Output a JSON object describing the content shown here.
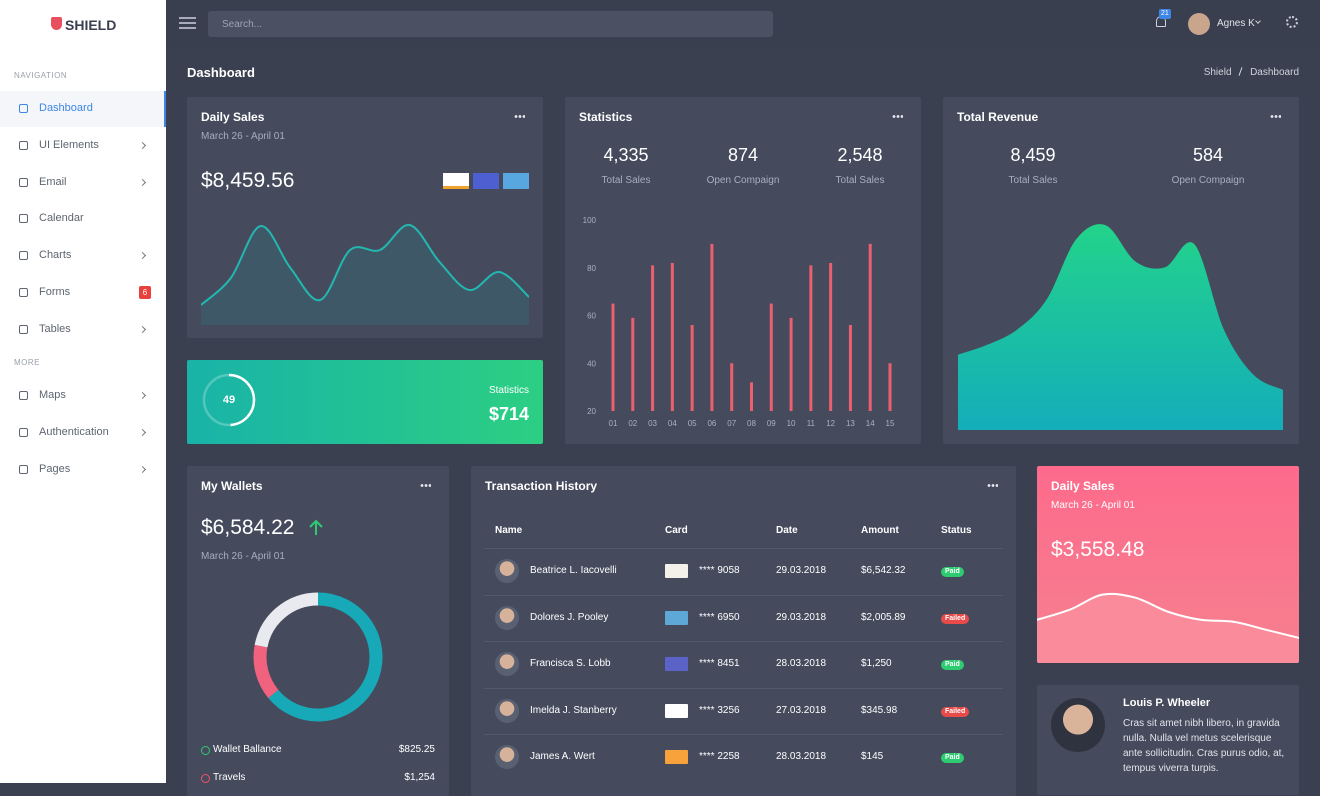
{
  "brand": "SHIELD",
  "topbar": {
    "search_placeholder": "Search...",
    "notifications": "21",
    "user": "Agnes K"
  },
  "sidebar": {
    "sections": [
      {
        "title": "NAVIGATION",
        "items": [
          {
            "label": "Dashboard",
            "active": true
          },
          {
            "label": "UI Elements",
            "submenu": true
          },
          {
            "label": "Email",
            "submenu": true
          },
          {
            "label": "Calendar"
          },
          {
            "label": "Charts",
            "submenu": true
          },
          {
            "label": "Forms",
            "badge": "6"
          },
          {
            "label": "Tables",
            "submenu": true
          }
        ]
      },
      {
        "title": "MORE",
        "items": [
          {
            "label": "Maps",
            "submenu": true
          },
          {
            "label": "Authentication",
            "submenu": true
          },
          {
            "label": "Pages",
            "submenu": true
          }
        ]
      }
    ]
  },
  "page": {
    "title": "Dashboard",
    "breadcrumb": [
      "Shield",
      "Dashboard"
    ]
  },
  "daily_sales": {
    "title": "Daily Sales",
    "subtitle": "March 26 - April 01",
    "amount": "$8,459.56"
  },
  "progress": {
    "value": 49,
    "label": "Statistics",
    "amount": "$714"
  },
  "statistics": {
    "title": "Statistics",
    "stats": [
      {
        "value": "4,335",
        "label": "Total Sales"
      },
      {
        "value": "874",
        "label": "Open Compaign"
      },
      {
        "value": "2,548",
        "label": "Total Sales"
      }
    ]
  },
  "total_revenue": {
    "title": "Total Revenue",
    "stats": [
      {
        "value": "8,459",
        "label": "Total Sales"
      },
      {
        "value": "584",
        "label": "Open Compaign"
      }
    ]
  },
  "wallets": {
    "title": "My Wallets",
    "amount": "$6,584.22",
    "subtitle": "March 26 - April 01",
    "items": [
      {
        "label": "Wallet Ballance",
        "amount": "$825.25",
        "color": "#2ecc71"
      },
      {
        "label": "Travels",
        "amount": "$1,254",
        "color": "#f0506e"
      }
    ]
  },
  "transactions": {
    "title": "Transaction History",
    "columns": [
      "Name",
      "Card",
      "Date",
      "Amount",
      "Status"
    ],
    "rows": [
      {
        "name": "Beatrice L. Iacovelli",
        "card": "**** 9058",
        "date": "29.03.2018",
        "amount": "$6,542.32",
        "status": "Paid",
        "status_color": "#2ecc71"
      },
      {
        "name": "Dolores J. Pooley",
        "card": "**** 6950",
        "date": "29.03.2018",
        "amount": "$2,005.89",
        "status": "Failed",
        "status_color": "#e84a4a"
      },
      {
        "name": "Francisca S. Lobb",
        "card": "**** 8451",
        "date": "28.03.2018",
        "amount": "$1,250",
        "status": "Paid",
        "status_color": "#2ecc71"
      },
      {
        "name": "Imelda J. Stanberry",
        "card": "**** 3256",
        "date": "27.03.2018",
        "amount": "$345.98",
        "status": "Failed",
        "status_color": "#e84a4a"
      },
      {
        "name": "James A. Wert",
        "card": "**** 2258",
        "date": "28.03.2018",
        "amount": "$145",
        "status": "Paid",
        "status_color": "#2ecc71"
      }
    ]
  },
  "daily_sales_2": {
    "title": "Daily Sales",
    "subtitle": "March 26 - April 01",
    "amount": "$3,558.48"
  },
  "profile": {
    "name": "Louis P. Wheeler",
    "text": "Cras sit amet nibh libero, in gravida nulla. Nulla vel metus scelerisque ante sollicitudin. Cras purus odio, at, tempus viverra turpis."
  },
  "chart_data": [
    {
      "type": "area",
      "values": [
        20,
        47,
        99,
        57,
        25,
        75,
        75,
        100,
        63,
        35,
        53,
        28
      ],
      "color": "#22b8b0",
      "fill": "#3f5868"
    },
    {
      "type": "bar",
      "categories": [
        "01",
        "02",
        "03",
        "04",
        "05",
        "06",
        "07",
        "08",
        "09",
        "10",
        "11",
        "12",
        "13",
        "14",
        "15"
      ],
      "values": [
        65,
        59,
        81,
        82,
        56,
        90,
        40,
        32,
        65,
        59,
        81,
        82,
        56,
        90,
        40
      ],
      "ylim": [
        20,
        100
      ],
      "yticks": [
        20,
        40,
        60,
        80,
        100
      ],
      "color": "#ec5f6f",
      "grid": false
    },
    {
      "type": "area",
      "values": [
        75,
        85,
        100,
        130,
        190,
        204,
        168,
        162,
        185,
        100,
        55,
        40
      ],
      "colors": [
        "#22d38a",
        "#14adba"
      ]
    },
    {
      "type": "donut",
      "values": [
        64,
        14,
        22
      ],
      "colors": [
        "#17a9b8",
        "#f0627e",
        "#e9eaef"
      ]
    },
    {
      "type": "area",
      "values": [
        43,
        53,
        68,
        65,
        51,
        43,
        41,
        33,
        25
      ],
      "color": "#ffffff",
      "fill": "#f98b9b"
    }
  ]
}
